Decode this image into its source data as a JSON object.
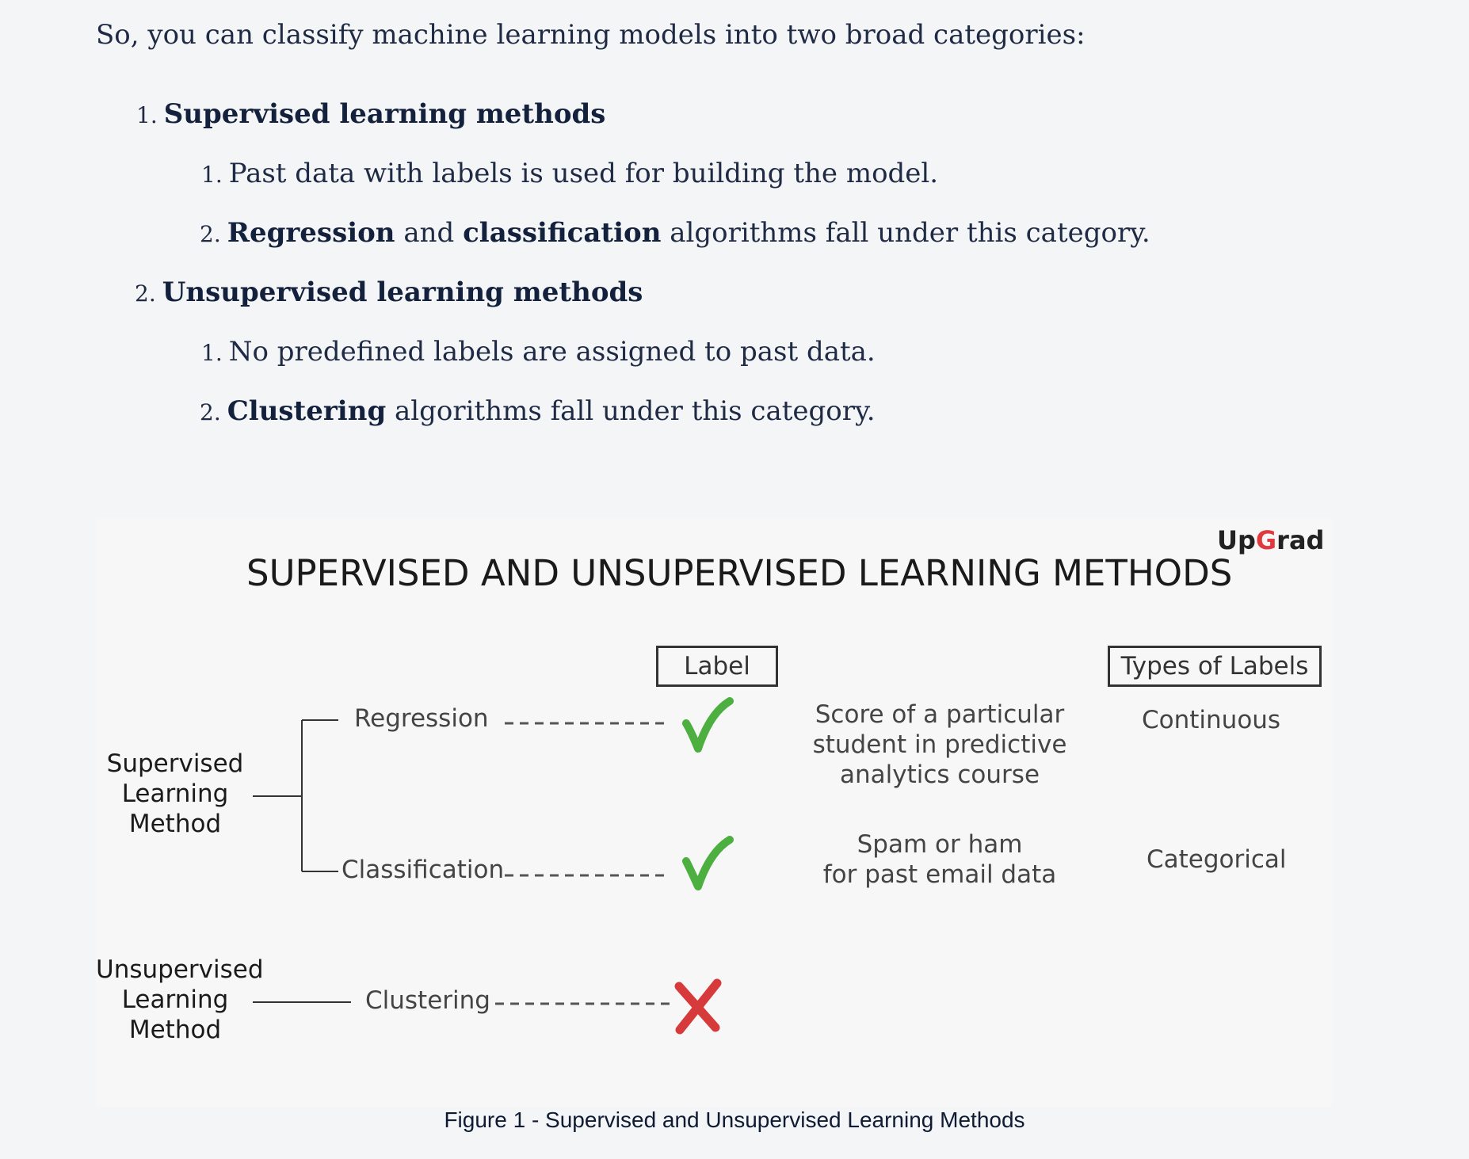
{
  "intro": "So, you can classify machine learning models into two broad categories:",
  "list": [
    {
      "number": "1.",
      "title": "Supervised learning methods",
      "sub": [
        {
          "number": "1.",
          "plain": "Past data with labels is used for building the model."
        },
        {
          "number": "2.",
          "bold1": "Regression",
          "mid": " and ",
          "bold2": "classification",
          "rest": " algorithms fall under this category."
        }
      ]
    },
    {
      "number": "2.",
      "title": "Unsupervised learning methods",
      "sub": [
        {
          "number": "1.",
          "plain": "No predefined labels are assigned to past data."
        },
        {
          "number": "2.",
          "bold1": "Clustering",
          "rest": " algorithms fall under this category."
        }
      ]
    }
  ],
  "figure": {
    "title": "SUPERVISED AND UNSUPERVISED LEARNING METHODS",
    "logo_left": "Up",
    "logo_g": "G",
    "logo_right": "rad",
    "label_header": "Label",
    "types_header": "Types of Labels",
    "supervised": [
      "Supervised",
      "Learning",
      "Method"
    ],
    "unsupervised": [
      "Unsupervised",
      "Learning",
      "Method"
    ],
    "regression": "Regression",
    "classification": "Classification",
    "clustering": "Clustering",
    "regression_example": [
      "Score of a particular",
      "student in predictive",
      "analytics course"
    ],
    "classification_example": [
      "Spam or ham",
      "for past email data"
    ],
    "continuous": "Continuous",
    "categorical": "Categorical",
    "check_color": "#4caf3f",
    "cross_color": "#d63a3a",
    "logo_accent": "#e03a3e"
  },
  "caption": "Figure 1 - Supervised and Unsupervised Learning Methods"
}
